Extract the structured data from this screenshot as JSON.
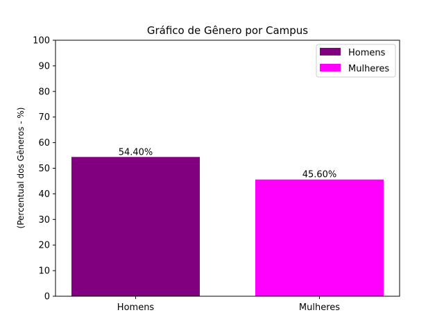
{
  "chart_data": {
    "type": "bar",
    "title": "Gráfico de Gênero por Campus",
    "xlabel": "",
    "ylabel": "(Percentual dos Gêneros - %)",
    "categories": [
      "Homens",
      "Mulheres"
    ],
    "values": [
      54.4,
      45.6
    ],
    "value_labels": [
      "54.40%",
      "45.60%"
    ],
    "colors": [
      "#800080",
      "#ff00ff"
    ],
    "ylim": [
      0,
      100
    ],
    "yticks": [
      "0",
      "10",
      "20",
      "30",
      "40",
      "50",
      "60",
      "70",
      "80",
      "90",
      "100"
    ],
    "grid": false,
    "legend": {
      "position": "top-right",
      "entries": [
        {
          "label": "Homens",
          "color": "#800080"
        },
        {
          "label": "Mulheres",
          "color": "#ff00ff"
        }
      ]
    }
  }
}
